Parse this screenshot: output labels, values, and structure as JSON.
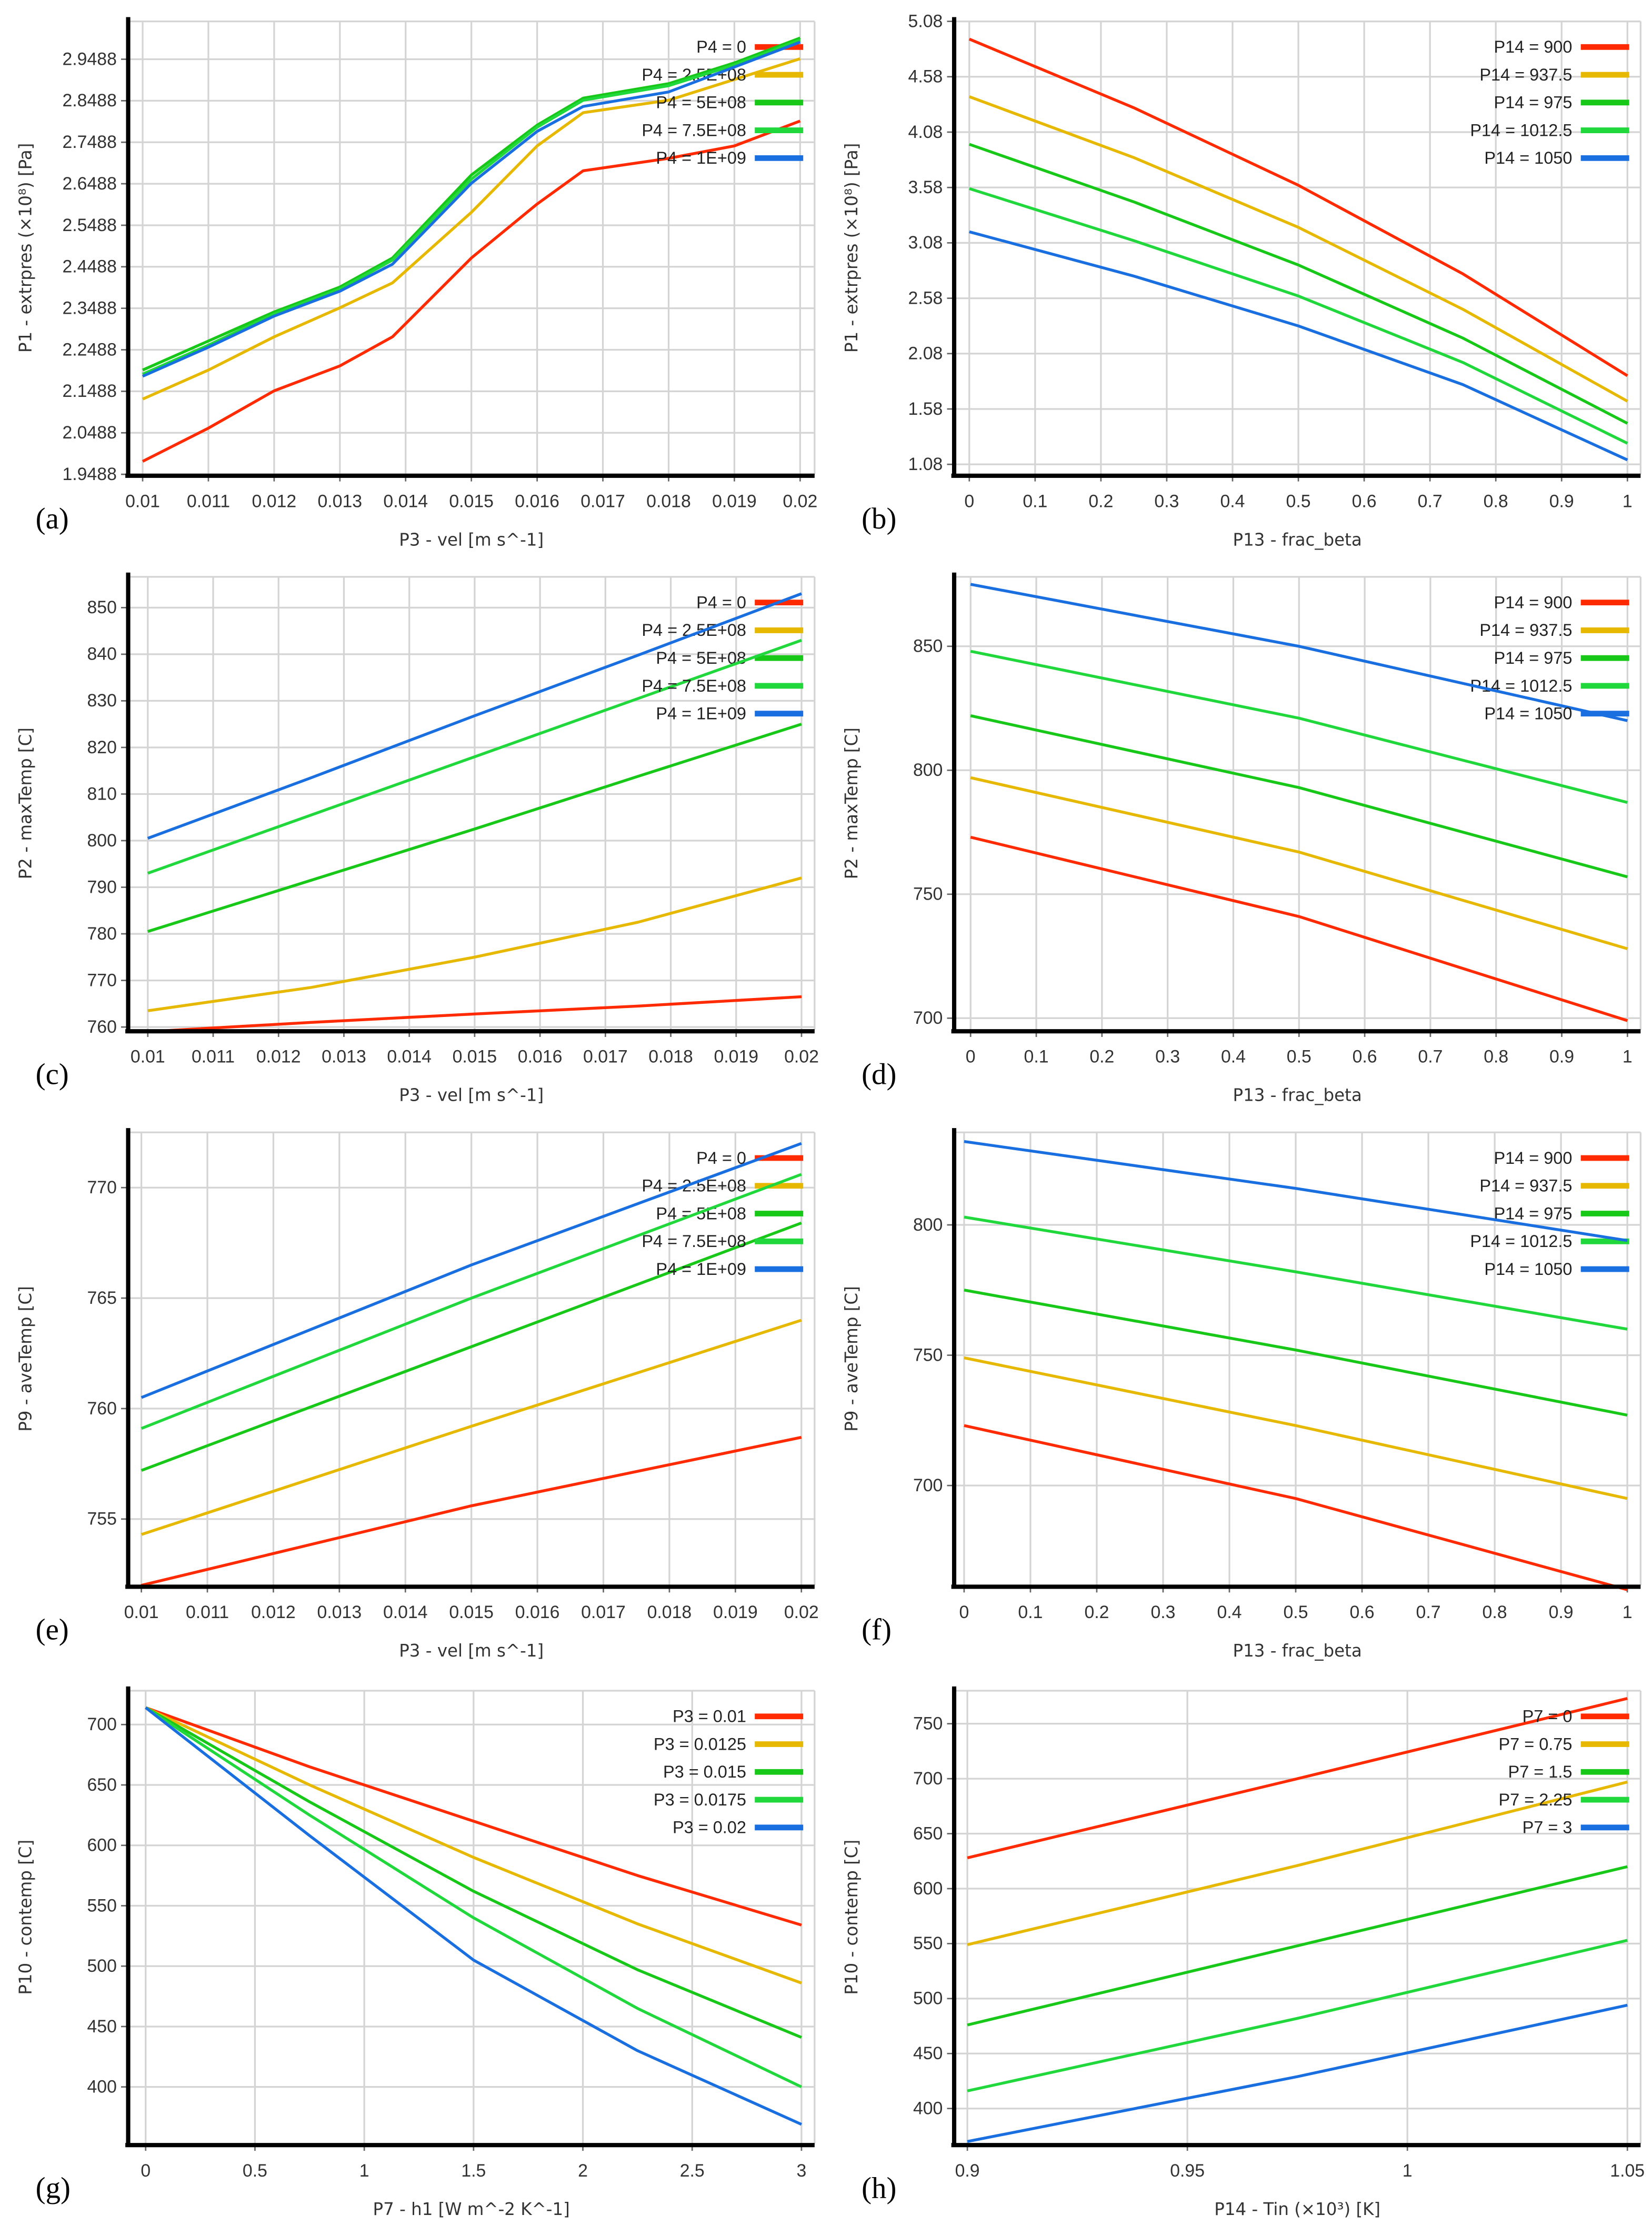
{
  "colors": {
    "red": "#ff2a00",
    "yellow": "#e6b800",
    "green": "#18c818",
    "green2": "#20d83c",
    "blue": "#1a6fe0",
    "grid": "#d4d4d4",
    "axis": "#000000"
  },
  "chart_data": [
    {
      "id": "a",
      "panel_label": "(a)",
      "type": "line",
      "xlabel": "P3 - vel  [m s^-1]",
      "ylabel": "P1 - extrpres  (×10⁸)  [Pa]",
      "xlim": [
        0.00978,
        0.02022
      ],
      "ylim": [
        1.9488,
        3.04
      ],
      "x_ticks": [
        "0.01",
        "0.011",
        "0.012",
        "0.013",
        "0.014",
        "0.015",
        "0.016",
        "0.017",
        "0.018",
        "0.019",
        "0.02"
      ],
      "y_ticks": [
        "1.9488",
        "2.0488",
        "2.1488",
        "2.2488",
        "2.3488",
        "2.4488",
        "2.5488",
        "2.6488",
        "2.7488",
        "2.8488",
        "2.9488"
      ],
      "x": [
        0.01,
        0.011,
        0.012,
        0.013,
        0.0138,
        0.015,
        0.016,
        0.0167,
        0.018,
        0.019,
        0.02
      ],
      "series": [
        {
          "name": "P4 = 0",
          "color": "red",
          "values": [
            1.98,
            2.06,
            2.15,
            2.21,
            2.28,
            2.47,
            2.6,
            2.68,
            2.71,
            2.74,
            2.8
          ]
        },
        {
          "name": "P4 = 2.5E+08",
          "color": "yellow",
          "values": [
            2.13,
            2.2,
            2.28,
            2.35,
            2.41,
            2.58,
            2.74,
            2.82,
            2.85,
            2.9,
            2.95
          ]
        },
        {
          "name": "P4 = 5E+08",
          "color": "green",
          "values": [
            2.2,
            2.27,
            2.34,
            2.4,
            2.47,
            2.67,
            2.79,
            2.855,
            2.89,
            2.94,
            3.0
          ]
        },
        {
          "name": "P4 = 7.5E+08",
          "color": "green2",
          "values": [
            2.19,
            2.26,
            2.335,
            2.395,
            2.465,
            2.66,
            2.785,
            2.85,
            2.885,
            2.935,
            2.995
          ]
        },
        {
          "name": "P4 = 1E+09",
          "color": "blue",
          "values": [
            2.185,
            2.255,
            2.33,
            2.39,
            2.455,
            2.65,
            2.775,
            2.835,
            2.87,
            2.93,
            2.99
          ]
        }
      ]
    },
    {
      "id": "b",
      "panel_label": "(b)",
      "type": "line",
      "xlabel": "P13 - frac_beta",
      "ylabel": "P1 - extrpres  (×10⁸)  [Pa]",
      "xlim": [
        -0.023,
        1.02
      ],
      "ylim": [
        0.99,
        5.08
      ],
      "x_ticks": [
        "0",
        "0.1",
        "0.2",
        "0.3",
        "0.4",
        "0.5",
        "0.6",
        "0.7",
        "0.8",
        "0.9",
        "1"
      ],
      "y_ticks": [
        "1.08",
        "1.58",
        "2.08",
        "2.58",
        "3.08",
        "3.58",
        "4.08",
        "4.58",
        "5.08"
      ],
      "x": [
        0,
        0.25,
        0.5,
        0.75,
        1
      ],
      "series": [
        {
          "name": "P14 = 900",
          "color": "red",
          "values": [
            4.92,
            4.3,
            3.6,
            2.8,
            1.88
          ]
        },
        {
          "name": "P14 = 937.5",
          "color": "yellow",
          "values": [
            4.4,
            3.85,
            3.22,
            2.48,
            1.65
          ]
        },
        {
          "name": "P14 = 975",
          "color": "green",
          "values": [
            3.97,
            3.45,
            2.88,
            2.22,
            1.45
          ]
        },
        {
          "name": "P14 = 1012.5",
          "color": "green2",
          "values": [
            3.57,
            3.1,
            2.6,
            2.0,
            1.27
          ]
        },
        {
          "name": "P14 = 1050",
          "color": "blue",
          "values": [
            3.18,
            2.78,
            2.33,
            1.8,
            1.12
          ]
        }
      ]
    },
    {
      "id": "c",
      "panel_label": "(c)",
      "type": "line",
      "xlabel": "P3 - vel  [m s^-1]",
      "ylabel": "P2 - maxTemp  [C]",
      "xlim": [
        0.0097,
        0.0202
      ],
      "ylim": [
        759.4,
        856.6
      ],
      "x_ticks": [
        "0.01",
        "0.011",
        "0.012",
        "0.013",
        "0.014",
        "0.015",
        "0.016",
        "0.017",
        "0.018",
        "0.019",
        "0.02"
      ],
      "y_ticks": [
        "760",
        "770",
        "780",
        "790",
        "800",
        "810",
        "820",
        "830",
        "840",
        "850"
      ],
      "x": [
        0.01,
        0.0125,
        0.015,
        0.0175,
        0.02
      ],
      "series": [
        {
          "name": "P4 = 0",
          "color": "red",
          "values": [
            759,
            761,
            762.8,
            764.5,
            766.5
          ]
        },
        {
          "name": "P4 = 2.5E+08",
          "color": "yellow",
          "values": [
            763.5,
            768.5,
            775,
            782.5,
            792
          ]
        },
        {
          "name": "P4 = 5E+08",
          "color": "green",
          "values": [
            780.5,
            791.5,
            802.5,
            813.8,
            825
          ]
        },
        {
          "name": "P4 = 7.5E+08",
          "color": "green2",
          "values": [
            793,
            805.5,
            818,
            830.5,
            843
          ]
        },
        {
          "name": "P4 = 1E+09",
          "color": "blue",
          "values": [
            800.5,
            813.5,
            826.8,
            839.8,
            853
          ]
        }
      ]
    },
    {
      "id": "d",
      "panel_label": "(d)",
      "type": "line",
      "xlabel": "P13 - frac_beta",
      "ylabel": "P2 - maxTemp  [C]",
      "xlim": [
        -0.025,
        1.02
      ],
      "ylim": [
        695.3,
        878
      ],
      "x_ticks": [
        "0",
        "0.1",
        "0.2",
        "0.3",
        "0.4",
        "0.5",
        "0.6",
        "0.7",
        "0.8",
        "0.9",
        "1"
      ],
      "y_ticks": [
        "700",
        "750",
        "800",
        "850"
      ],
      "x": [
        0,
        0.5,
        1
      ],
      "series": [
        {
          "name": "P14 = 900",
          "color": "red",
          "values": [
            773,
            741,
            699
          ]
        },
        {
          "name": "P14 = 937.5",
          "color": "yellow",
          "values": [
            797,
            767,
            728
          ]
        },
        {
          "name": "P14 = 975",
          "color": "green",
          "values": [
            822,
            793,
            757
          ]
        },
        {
          "name": "P14 = 1012.5",
          "color": "green2",
          "values": [
            848,
            821,
            787
          ]
        },
        {
          "name": "P14 = 1050",
          "color": "blue",
          "values": [
            875,
            850,
            820
          ]
        }
      ]
    },
    {
      "id": "e",
      "panel_label": "(e)",
      "type": "line",
      "xlabel": "P3 - vel  [m s^-1]",
      "ylabel": "P9 - aveTemp  [C]",
      "xlim": [
        0.0098,
        0.0202
      ],
      "ylim": [
        752,
        772.5
      ],
      "x_ticks": [
        "0.01",
        "0.011",
        "0.012",
        "0.013",
        "0.014",
        "0.015",
        "0.016",
        "0.017",
        "0.018",
        "0.019",
        "0.02"
      ],
      "y_ticks": [
        "755",
        "760",
        "765",
        "770"
      ],
      "x": [
        0.01,
        0.015,
        0.02
      ],
      "series": [
        {
          "name": "P4 = 0",
          "color": "red",
          "values": [
            752,
            755.6,
            758.7
          ]
        },
        {
          "name": "P4 = 2.5E+08",
          "color": "yellow",
          "values": [
            754.3,
            759.2,
            764
          ]
        },
        {
          "name": "P4 = 5E+08",
          "color": "green",
          "values": [
            757.2,
            762.8,
            768.4
          ]
        },
        {
          "name": "P4 = 7.5E+08",
          "color": "green2",
          "values": [
            759.1,
            765,
            770.6
          ]
        },
        {
          "name": "P4 = 1E+09",
          "color": "blue",
          "values": [
            760.5,
            766.5,
            772
          ]
        }
      ]
    },
    {
      "id": "f",
      "panel_label": "(f)",
      "type": "line",
      "xlabel": "P13 - frac_beta",
      "ylabel": "P9 - aveTemp  [C]",
      "xlim": [
        -0.015,
        1.02
      ],
      "ylim": [
        661.7,
        835.5
      ],
      "x_ticks": [
        "0",
        "0.1",
        "0.2",
        "0.3",
        "0.4",
        "0.5",
        "0.6",
        "0.7",
        "0.8",
        "0.9",
        "1"
      ],
      "y_ticks": [
        "700",
        "750",
        "800"
      ],
      "x": [
        0,
        0.5,
        1
      ],
      "series": [
        {
          "name": "P14 = 900",
          "color": "red",
          "values": [
            723,
            695,
            660
          ]
        },
        {
          "name": "P14 = 937.5",
          "color": "yellow",
          "values": [
            749,
            723,
            695
          ]
        },
        {
          "name": "P14 = 975",
          "color": "green",
          "values": [
            775,
            752,
            727
          ]
        },
        {
          "name": "P14 = 1012.5",
          "color": "green2",
          "values": [
            803,
            782,
            760
          ]
        },
        {
          "name": "P14 = 1050",
          "color": "blue",
          "values": [
            832,
            814,
            794
          ]
        }
      ]
    },
    {
      "id": "g",
      "panel_label": "(g)",
      "type": "line",
      "xlabel": "P7 - h1  [W m^-2 K^-1]",
      "ylabel": "P10 - contemp  [C]",
      "xlim": [
        -0.08,
        3.06
      ],
      "ylim": [
        353,
        728
      ],
      "x_ticks": [
        "0",
        "0.5",
        "1",
        "1.5",
        "2",
        "2.5",
        "3"
      ],
      "y_ticks": [
        "400",
        "450",
        "500",
        "550",
        "600",
        "650",
        "700"
      ],
      "x": [
        0,
        0.75,
        1.5,
        2.25,
        3
      ],
      "series": [
        {
          "name": "P3 = 0.01",
          "color": "red",
          "values": [
            714,
            665,
            620,
            575,
            534
          ]
        },
        {
          "name": "P3 = 0.0125",
          "color": "yellow",
          "values": [
            714,
            650,
            590,
            535,
            486
          ]
        },
        {
          "name": "P3 = 0.015",
          "color": "green",
          "values": [
            714,
            636,
            562,
            497,
            441
          ]
        },
        {
          "name": "P3 = 0.0175",
          "color": "green2",
          "values": [
            714,
            625,
            540,
            465,
            400
          ]
        },
        {
          "name": "P3 = 0.02",
          "color": "blue",
          "values": [
            714,
            608,
            505,
            430,
            369
          ]
        }
      ]
    },
    {
      "id": "h",
      "panel_label": "(h)",
      "type": "line",
      "xlabel": "P14 - Tin  (×10³)  [K]",
      "ylabel": "P10 - contemp  [C]",
      "xlim": [
        0.897,
        1.053
      ],
      "ylim": [
        368,
        780
      ],
      "x_ticks": [
        "0.9",
        "0.95",
        "1",
        "1.05"
      ],
      "y_ticks": [
        "400",
        "450",
        "500",
        "550",
        "600",
        "650",
        "700",
        "750"
      ],
      "x": [
        0.9,
        0.975,
        1.05
      ],
      "series": [
        {
          "name": "P7 = 0",
          "color": "red",
          "values": [
            628,
            700,
            773
          ]
        },
        {
          "name": "P7 = 0.75",
          "color": "yellow",
          "values": [
            549,
            621,
            697
          ]
        },
        {
          "name": "P7 = 1.5",
          "color": "green",
          "values": [
            476,
            548,
            620
          ]
        },
        {
          "name": "P7 = 2.25",
          "color": "green2",
          "values": [
            416,
            482,
            553
          ]
        },
        {
          "name": "P7 = 3",
          "color": "blue",
          "values": [
            370,
            429,
            494
          ]
        }
      ]
    }
  ]
}
